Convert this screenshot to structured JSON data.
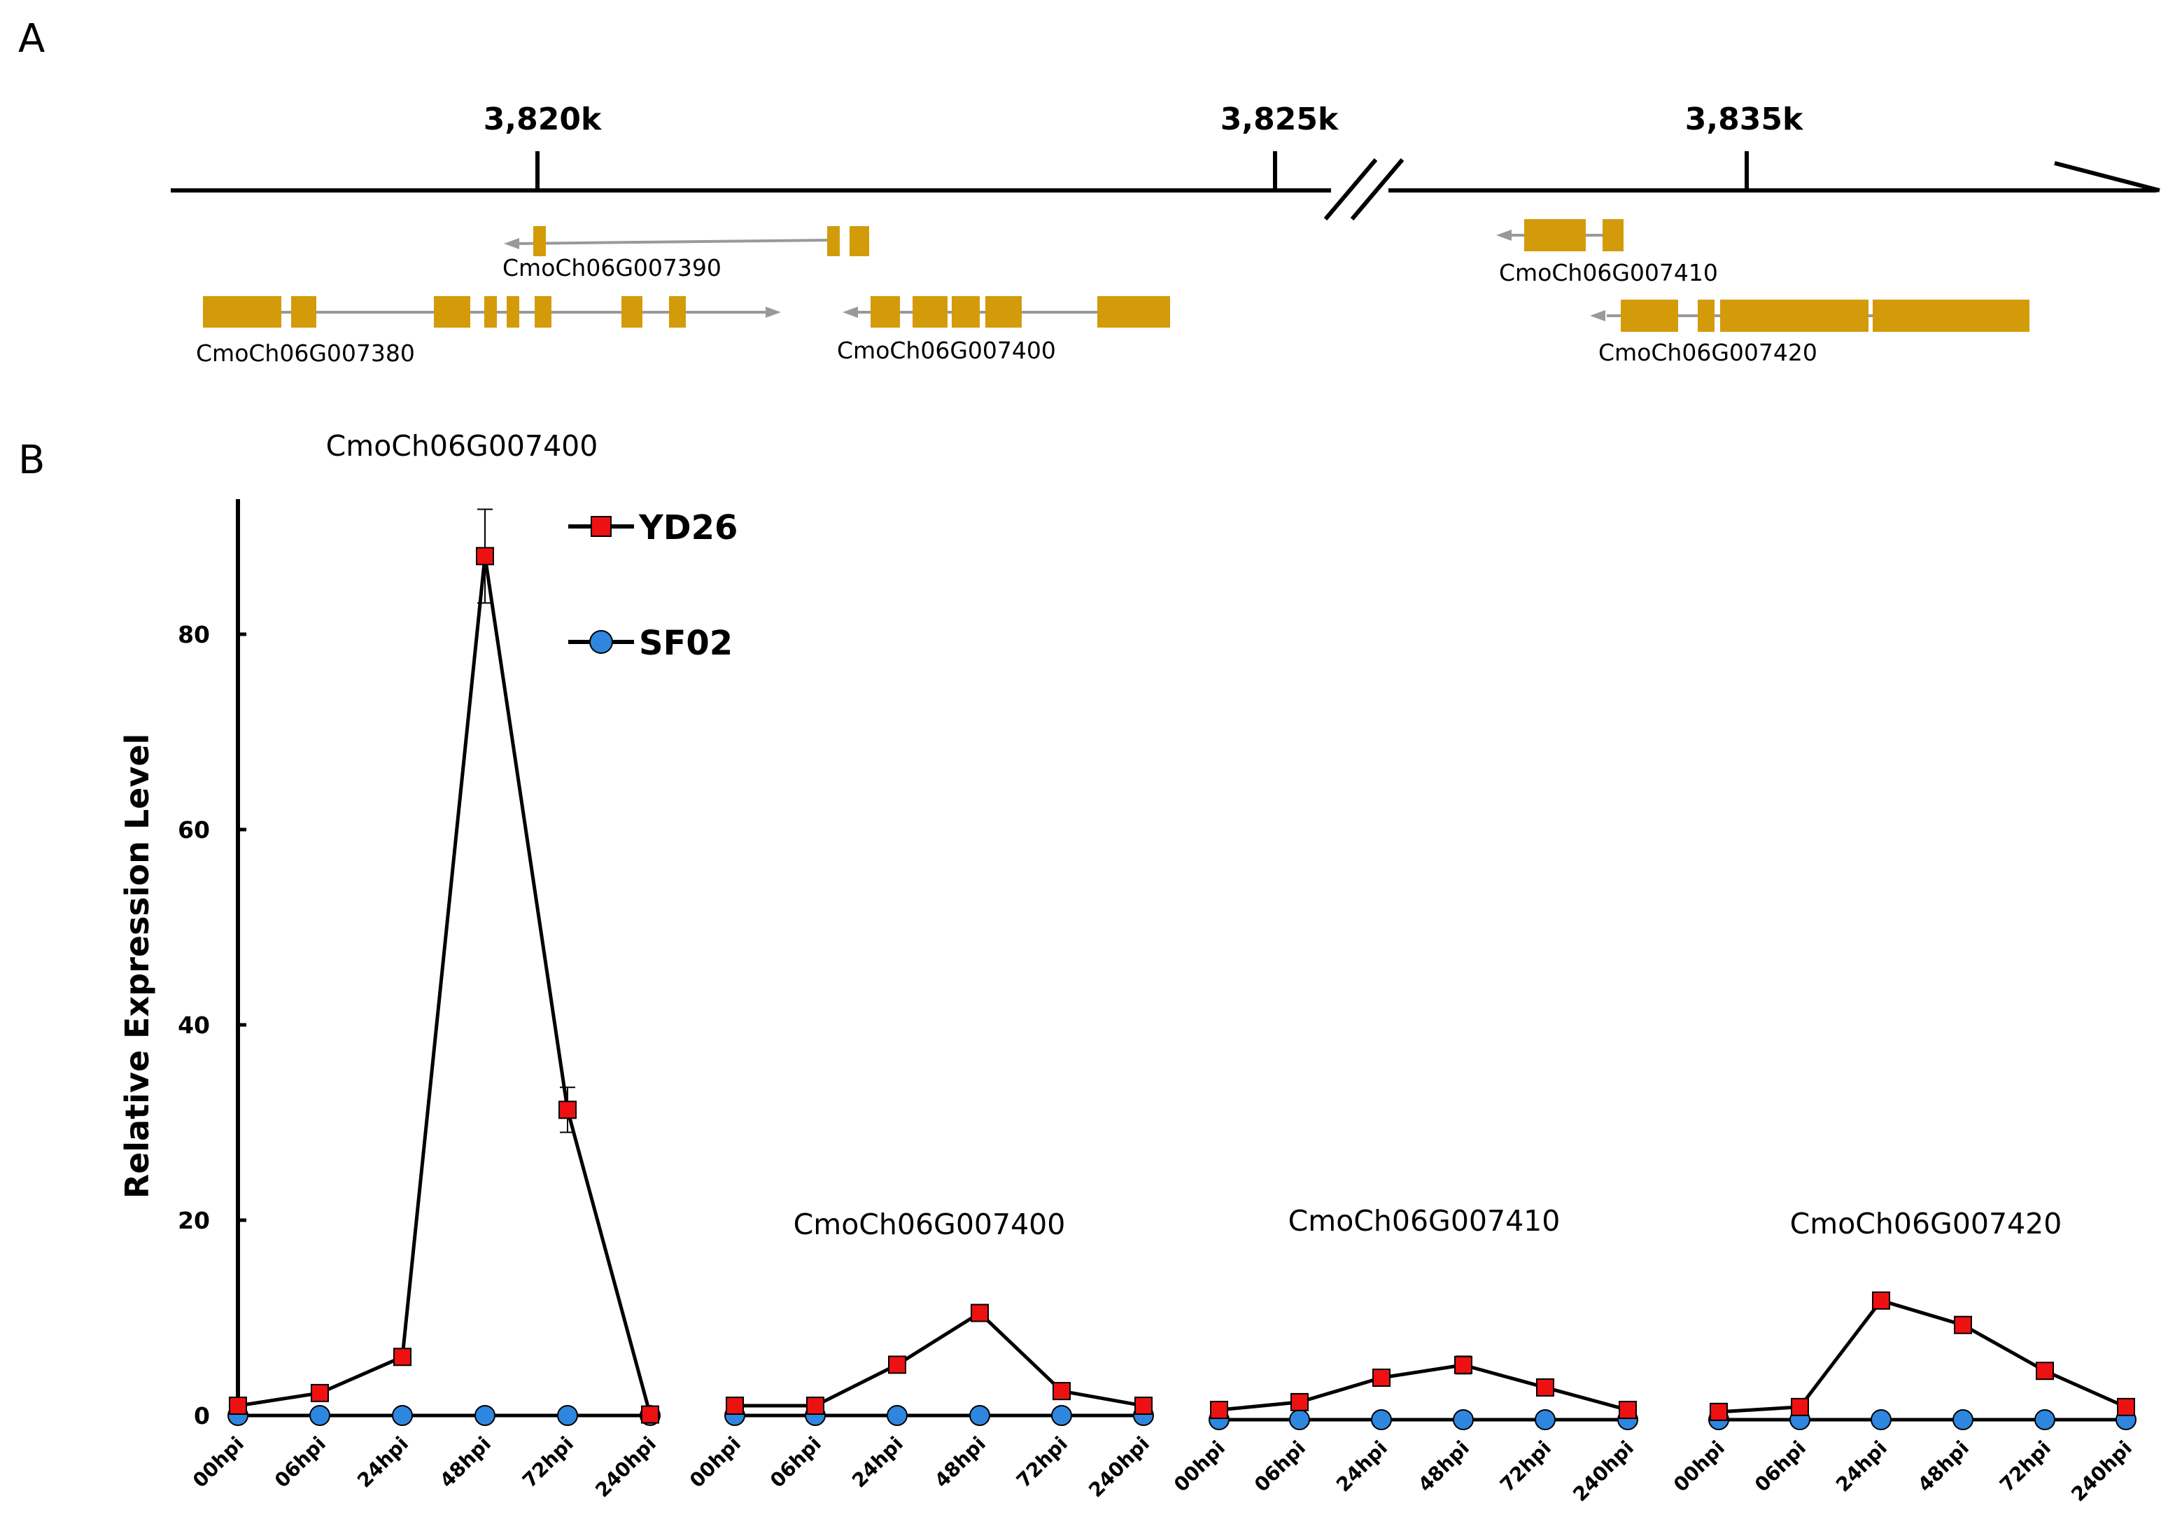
{
  "panels": {
    "a": "A",
    "b": "B"
  },
  "colors": {
    "exon": "#D39B0A",
    "intron": "#999999",
    "axis": "#000000",
    "yd26": "#EE1111",
    "sf02": "#2E86DE"
  },
  "panel_a": {
    "positions": [
      "3,820k",
      "3,825k",
      "3,835k"
    ],
    "genes": [
      {
        "name": "CmoCh06G007390",
        "strand": "minus"
      },
      {
        "name": "CmoCh06G007380",
        "strand": "plus"
      },
      {
        "name": "CmoCh06G007400",
        "strand": "minus"
      },
      {
        "name": "CmoCh06G007410",
        "strand": "minus"
      },
      {
        "name": "CmoCh06G007420",
        "strand": "minus"
      }
    ]
  },
  "legend": {
    "series1": "YD26",
    "series2": "SF02"
  },
  "chart_data": {
    "type": "line",
    "ylabel": "Relative Expression Level",
    "ylim": [
      0,
      95
    ],
    "yticks": [
      "0",
      "20",
      "40",
      "60",
      "80"
    ],
    "categories": [
      "00hpi",
      "06hpi",
      "24hpi",
      "48hpi",
      "72hpi",
      "240hpi"
    ],
    "subplots": [
      {
        "title": "CmoCh06G007400",
        "series": [
          {
            "name": "YD26",
            "values": [
              1.0,
              2.3,
              6.0,
              88.0,
              31.3,
              0.1
            ],
            "errors": [
              0,
              0.3,
              0.3,
              4.8,
              2.3,
              0
            ]
          },
          {
            "name": "SF02",
            "values": [
              0,
              0,
              0,
              0,
              0,
              0
            ]
          }
        ]
      },
      {
        "title": "CmoCh06G007400",
        "series": [
          {
            "name": "YD26",
            "values": [
              1.0,
              1.0,
              5.2,
              10.5,
              2.5,
              1.0
            ],
            "errors": [
              0,
              0,
              0,
              0,
              0,
              0
            ]
          },
          {
            "name": "SF02",
            "values": [
              0,
              0,
              0,
              0,
              0,
              0
            ]
          }
        ]
      },
      {
        "title": "CmoCh06G007410",
        "series": [
          {
            "name": "YD26",
            "values": [
              1.0,
              1.8,
              4.3,
              5.6,
              3.3,
              1.0
            ],
            "errors": [
              0,
              0,
              0.3,
              0.9,
              0.2,
              0
            ]
          },
          {
            "name": "SF02",
            "values": [
              0,
              0,
              0,
              0,
              0,
              0
            ]
          }
        ]
      },
      {
        "title": "CmoCh06G007420",
        "series": [
          {
            "name": "YD26",
            "values": [
              0.8,
              1.3,
              12.2,
              9.7,
              5.0,
              1.3
            ],
            "errors": [
              0,
              0,
              0,
              0,
              0,
              0
            ]
          },
          {
            "name": "SF02",
            "values": [
              0,
              0,
              0,
              0,
              0,
              0
            ]
          }
        ]
      }
    ]
  }
}
